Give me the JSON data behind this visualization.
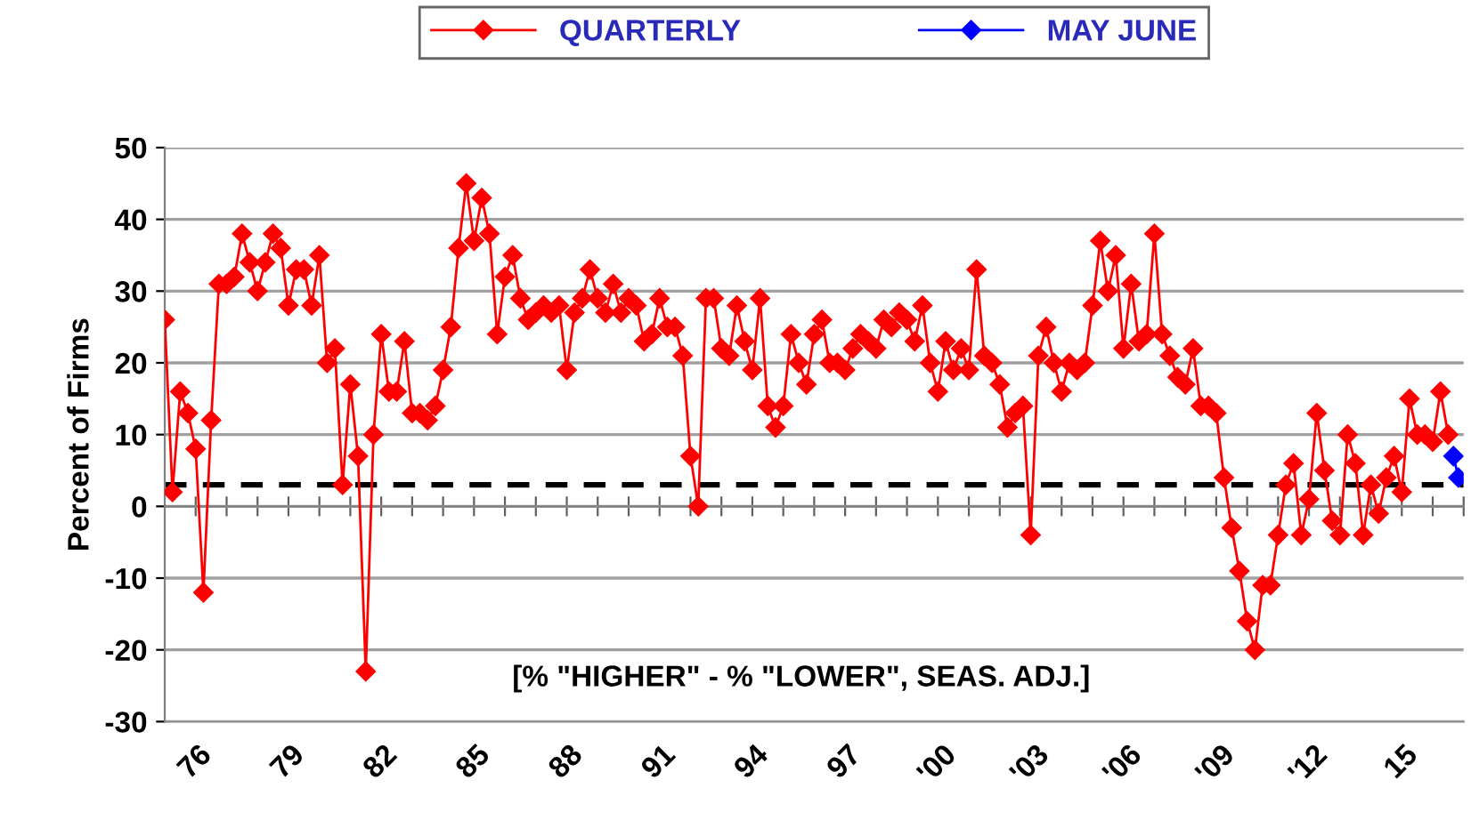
{
  "chart_data": {
    "type": "line",
    "ylabel": "Percent of Firms",
    "annotations": [
      "[% \"HIGHER\" - % \"LOWER\", SEAS. ADJ.]"
    ],
    "series": [
      {
        "name": "QUARTERLY",
        "color": "#ff0000",
        "x": [
          1975.0,
          1975.25,
          1975.5,
          1975.75,
          1976.0,
          1976.25,
          1976.5,
          1976.75,
          1977.0,
          1977.25,
          1977.5,
          1977.75,
          1978.0,
          1978.25,
          1978.5,
          1978.75,
          1979.0,
          1979.25,
          1979.5,
          1979.75,
          1980.0,
          1980.25,
          1980.5,
          1980.75,
          1981.0,
          1981.25,
          1981.5,
          1981.75,
          1982.0,
          1982.25,
          1982.5,
          1982.75,
          1983.0,
          1983.25,
          1983.5,
          1983.75,
          1984.0,
          1984.25,
          1984.5,
          1984.75,
          1985.0,
          1985.25,
          1985.5,
          1985.75,
          1986.0,
          1986.25,
          1986.5,
          1986.75,
          1987.0,
          1987.25,
          1987.5,
          1987.75,
          1988.0,
          1988.25,
          1988.5,
          1988.75,
          1989.0,
          1989.25,
          1989.5,
          1989.75,
          1990.0,
          1990.25,
          1990.5,
          1990.75,
          1991.0,
          1991.25,
          1991.5,
          1991.75,
          1992.0,
          1992.25,
          1992.5,
          1992.75,
          1993.0,
          1993.25,
          1993.5,
          1993.75,
          1994.0,
          1994.25,
          1994.5,
          1994.75,
          1995.0,
          1995.25,
          1995.5,
          1995.75,
          1996.0,
          1996.25,
          1996.5,
          1996.75,
          1997.0,
          1997.25,
          1997.5,
          1997.75,
          1998.0,
          1998.25,
          1998.5,
          1998.75,
          1999.0,
          1999.25,
          1999.5,
          1999.75,
          2000.0,
          2000.25,
          2000.5,
          2000.75,
          2001.0,
          2001.25,
          2001.5,
          2001.75,
          2002.0,
          2002.25,
          2002.5,
          2002.75,
          2003.0,
          2003.25,
          2003.5,
          2003.75,
          2004.0,
          2004.25,
          2004.5,
          2004.75,
          2005.0,
          2005.25,
          2005.5,
          2005.75,
          2006.0,
          2006.25,
          2006.5,
          2006.75,
          2007.0,
          2007.25,
          2007.5,
          2007.75,
          2008.0,
          2008.25,
          2008.5,
          2008.75,
          2009.0,
          2009.25,
          2009.5,
          2009.75,
          2010.0,
          2010.25,
          2010.5,
          2010.75,
          2011.0,
          2011.25,
          2011.5,
          2011.75,
          2012.0,
          2012.25,
          2012.5,
          2012.75,
          2013.0,
          2013.25,
          2013.5,
          2013.75,
          2014.0,
          2014.25,
          2014.5,
          2014.75,
          2015.0,
          2015.25,
          2015.5,
          2015.75,
          2016.0,
          2016.25,
          2016.5
        ],
        "values": [
          26,
          2,
          16,
          13,
          8,
          -12,
          12,
          31,
          31,
          32,
          38,
          34,
          30,
          34,
          38,
          36,
          28,
          33,
          33,
          28,
          35,
          20,
          22,
          3,
          17,
          7,
          -23,
          10,
          24,
          16,
          16,
          23,
          13,
          13,
          12,
          14,
          19,
          25,
          36,
          45,
          37,
          43,
          38,
          24,
          32,
          35,
          29,
          26,
          27,
          28,
          27,
          28,
          19,
          27,
          29,
          33,
          29,
          27,
          31,
          27,
          29,
          28,
          23,
          24,
          29,
          25,
          25,
          21,
          7,
          0,
          29,
          29,
          22,
          21,
          28,
          23,
          19,
          29,
          14,
          11,
          14,
          24,
          20,
          17,
          24,
          26,
          20,
          20,
          19,
          22,
          24,
          23,
          22,
          26,
          25,
          27,
          26,
          23,
          28,
          20,
          16,
          23,
          19,
          22,
          19,
          33,
          21,
          20,
          17,
          11,
          13,
          14,
          -4,
          21,
          25,
          20,
          16,
          20,
          19,
          20,
          28,
          37,
          30,
          35,
          22,
          31,
          23,
          24,
          38,
          24,
          21,
          18,
          17,
          22,
          14,
          14,
          13,
          4,
          -3,
          -9,
          -16,
          -20,
          -11,
          -11,
          -4,
          3,
          6,
          -4,
          1,
          13,
          5,
          -2,
          -4,
          10,
          6,
          -4,
          3,
          -1,
          4,
          7,
          2,
          15,
          10,
          10,
          9,
          16,
          10
        ]
      },
      {
        "name": "MAY JUNE",
        "color": "#0000ff",
        "x": [
          2016.67,
          2016.83
        ],
        "values": [
          7,
          4
        ]
      }
    ],
    "xlim": [
      1975,
      2017
    ],
    "xticks": [
      {
        "value": 1976,
        "label": "76"
      },
      {
        "value": 1977,
        "label": null
      },
      {
        "value": 1978,
        "label": null
      },
      {
        "value": 1979,
        "label": "79"
      },
      {
        "value": 1980,
        "label": null
      },
      {
        "value": 1981,
        "label": null
      },
      {
        "value": 1982,
        "label": "82"
      },
      {
        "value": 1983,
        "label": null
      },
      {
        "value": 1984,
        "label": null
      },
      {
        "value": 1985,
        "label": "85"
      },
      {
        "value": 1986,
        "label": null
      },
      {
        "value": 1987,
        "label": null
      },
      {
        "value": 1988,
        "label": "88"
      },
      {
        "value": 1989,
        "label": null
      },
      {
        "value": 1990,
        "label": null
      },
      {
        "value": 1991,
        "label": "91"
      },
      {
        "value": 1992,
        "label": null
      },
      {
        "value": 1993,
        "label": null
      },
      {
        "value": 1994,
        "label": "94"
      },
      {
        "value": 1995,
        "label": null
      },
      {
        "value": 1996,
        "label": null
      },
      {
        "value": 1997,
        "label": "97"
      },
      {
        "value": 1998,
        "label": null
      },
      {
        "value": 1999,
        "label": null
      },
      {
        "value": 2000,
        "label": "'00"
      },
      {
        "value": 2001,
        "label": null
      },
      {
        "value": 2002,
        "label": null
      },
      {
        "value": 2003,
        "label": "'03"
      },
      {
        "value": 2004,
        "label": null
      },
      {
        "value": 2005,
        "label": null
      },
      {
        "value": 2006,
        "label": "'06"
      },
      {
        "value": 2007,
        "label": null
      },
      {
        "value": 2008,
        "label": null
      },
      {
        "value": 2009,
        "label": "'09"
      },
      {
        "value": 2010,
        "label": null
      },
      {
        "value": 2011,
        "label": null
      },
      {
        "value": 2012,
        "label": "'12"
      },
      {
        "value": 2013,
        "label": null
      },
      {
        "value": 2014,
        "label": null
      },
      {
        "value": 2015,
        "label": "15"
      },
      {
        "value": 2016,
        "label": null
      },
      {
        "value": 2017,
        "label": null
      }
    ],
    "ylim": [
      -30,
      50
    ],
    "yticks": [
      -30,
      -20,
      -10,
      0,
      10,
      20,
      30,
      40,
      50
    ],
    "ref_lines": [
      {
        "axis": "y",
        "value": 3,
        "color": "#000000",
        "line_style": "dashed"
      }
    ],
    "grid": "y",
    "legend": "top",
    "marker": "diamond",
    "line_style": "solid"
  }
}
